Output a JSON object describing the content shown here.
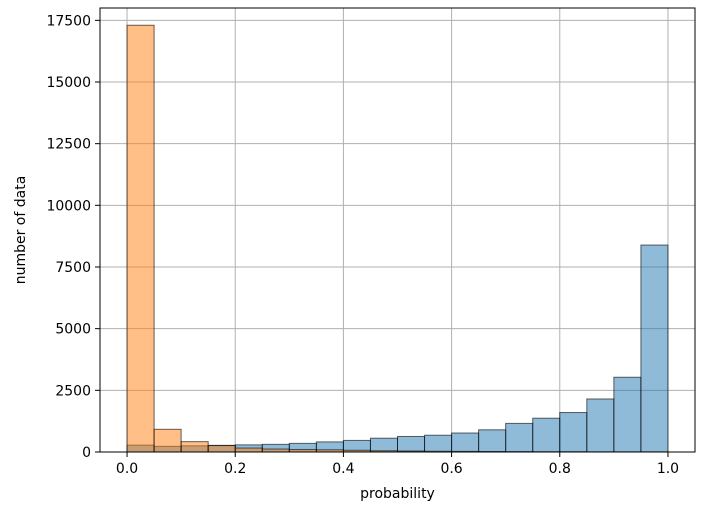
{
  "chart_data": {
    "type": "bar",
    "title": "",
    "xlabel": "probability",
    "ylabel": "number of data",
    "xlim": [
      -0.05,
      1.05
    ],
    "ylim": [
      0,
      18000
    ],
    "xticks": [
      0.0,
      0.2,
      0.4,
      0.6,
      0.8,
      1.0
    ],
    "xtick_labels": [
      "0.0",
      "0.2",
      "0.4",
      "0.6",
      "0.8",
      "1.0"
    ],
    "yticks": [
      0,
      2500,
      5000,
      7500,
      10000,
      12500,
      15000,
      17500
    ],
    "ytick_labels": [
      "0",
      "2500",
      "5000",
      "7500",
      "10000",
      "12500",
      "15000",
      "17500"
    ],
    "grid": true,
    "legend": "none",
    "bin_edges": [
      0.0,
      0.05,
      0.1,
      0.15,
      0.2,
      0.25,
      0.3,
      0.35,
      0.4,
      0.45,
      0.5,
      0.55,
      0.6,
      0.65,
      0.7,
      0.75,
      0.8,
      0.85,
      0.9,
      0.95,
      1.0
    ],
    "series": [
      {
        "color": "#1f77b4",
        "values": [
          280,
          230,
          250,
          270,
          290,
          310,
          350,
          410,
          470,
          560,
          630,
          680,
          770,
          900,
          1160,
          1370,
          1600,
          2150,
          3030,
          8390
        ]
      },
      {
        "color": "#ff7f0e",
        "values": [
          17300,
          920,
          420,
          260,
          160,
          120,
          100,
          90,
          70,
          50,
          40,
          30,
          25,
          20,
          15,
          10,
          10,
          5,
          5,
          5
        ]
      }
    ]
  }
}
